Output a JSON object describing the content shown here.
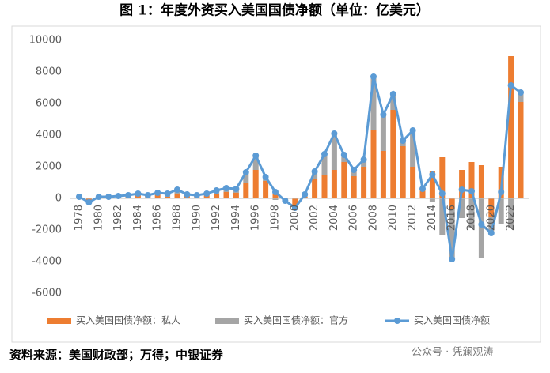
{
  "chart_data": {
    "type": "bar-line",
    "title": "图 1：年度外资买入美国国债净额（单位：亿美元）",
    "source": "资料来源：美国财政部；万得；中银证券",
    "watermark": "公众号 · 凭澜观涛",
    "categories": [
      "1978",
      null,
      "1980",
      null,
      "1982",
      null,
      "1984",
      null,
      "1986",
      null,
      "1988",
      null,
      "1990",
      null,
      "1992",
      null,
      "1994",
      null,
      "1996",
      null,
      "1998",
      null,
      "2000",
      null,
      "2002",
      null,
      "2004",
      null,
      "2006",
      null,
      "2008",
      null,
      "2010",
      null,
      "2012",
      null,
      "2014",
      null,
      "2016",
      null,
      "2018",
      null,
      "2020",
      null,
      "2022",
      null
    ],
    "series": [
      {
        "name": "买入美国国债净额：私人",
        "color": "#ed7d31",
        "kind": "bar",
        "values": [
          50,
          -100,
          50,
          50,
          100,
          100,
          200,
          150,
          250,
          100,
          300,
          150,
          100,
          200,
          300,
          400,
          350,
          1000,
          1800,
          1100,
          500,
          50,
          -400,
          100,
          1200,
          1500,
          1800,
          2300,
          1400,
          2000,
          4300,
          3000,
          5600,
          3300,
          2000,
          500,
          1700,
          2600,
          -700,
          1800,
          2300,
          2100,
          -1200,
          2000,
          9000,
          6100
        ]
      },
      {
        "name": "买入美国国债净额：官方",
        "color": "#a5a5a5",
        "kind": "bar",
        "values": [
          50,
          -150,
          50,
          50,
          50,
          100,
          100,
          50,
          100,
          200,
          250,
          100,
          100,
          100,
          200,
          250,
          250,
          650,
          900,
          250,
          -100,
          -200,
          -200,
          150,
          500,
          1300,
          2300,
          450,
          400,
          450,
          3400,
          2300,
          1000,
          350,
          2300,
          100,
          -200,
          -2300,
          -3150,
          -1250,
          -1850,
          -3750,
          -1000,
          -1600,
          -1850,
          600
        ]
      },
      {
        "name": "买入美国国债净额",
        "color": "#5b9bd5",
        "kind": "line",
        "values": [
          100,
          -250,
          100,
          100,
          150,
          200,
          300,
          200,
          350,
          300,
          550,
          250,
          200,
          300,
          500,
          650,
          600,
          1650,
          2700,
          1350,
          400,
          -150,
          -600,
          250,
          1700,
          2800,
          4100,
          2750,
          1800,
          2450,
          7700,
          5300,
          6600,
          3650,
          4300,
          600,
          1500,
          300,
          -3850,
          550,
          450,
          -1650,
          -2200,
          400,
          7150,
          6700
        ]
      }
    ],
    "ylim": [
      -6000,
      10000
    ],
    "yticks": [
      -6000,
      -4000,
      -2000,
      0,
      2000,
      4000,
      6000,
      8000,
      10000
    ],
    "grid": false,
    "legend": "bottom"
  }
}
